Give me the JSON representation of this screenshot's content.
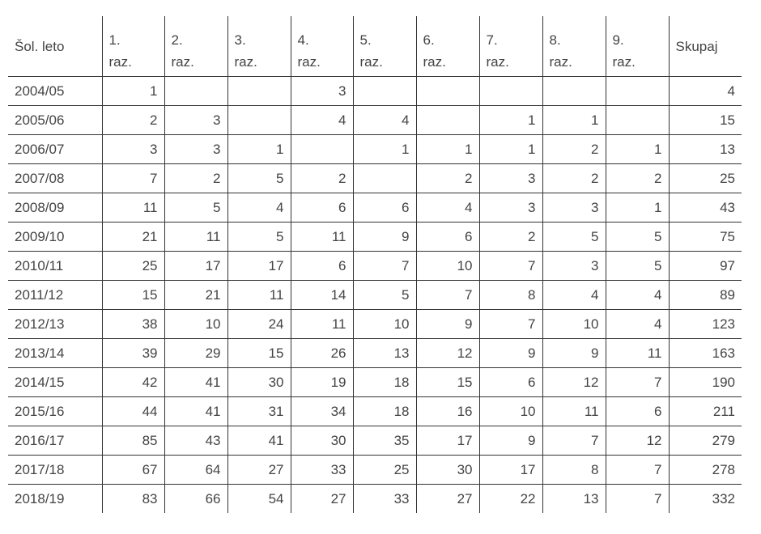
{
  "headers": [
    "Šol. leto",
    "1. raz.",
    "2. raz.",
    "3. raz.",
    "4. raz.",
    "5. raz.",
    "6. raz.",
    "7. raz.",
    "8. raz.",
    "9. raz.",
    "Skupaj"
  ],
  "header_parts": [
    [
      "Šol. leto"
    ],
    [
      "1.",
      "raz."
    ],
    [
      "2.",
      "raz."
    ],
    [
      "3.",
      "raz."
    ],
    [
      "4.",
      "raz."
    ],
    [
      "5.",
      "raz."
    ],
    [
      "6.",
      "raz."
    ],
    [
      "7.",
      "raz."
    ],
    [
      "8.",
      "raz."
    ],
    [
      "9.",
      "raz."
    ],
    [
      "Skupaj"
    ]
  ],
  "rows": [
    [
      "2004/05",
      "1",
      "",
      "",
      "3",
      "",
      "",
      "",
      "",
      "",
      "4"
    ],
    [
      "2005/06",
      "2",
      "3",
      "",
      "4",
      "4",
      "",
      "1",
      "1",
      "",
      "15"
    ],
    [
      "2006/07",
      "3",
      "3",
      "1",
      "",
      "1",
      "1",
      "1",
      "2",
      "1",
      "13"
    ],
    [
      "2007/08",
      "7",
      "2",
      "5",
      "2",
      "",
      "2",
      "3",
      "2",
      "2",
      "25"
    ],
    [
      "2008/09",
      "11",
      "5",
      "4",
      "6",
      "6",
      "4",
      "3",
      "3",
      "1",
      "43"
    ],
    [
      "2009/10",
      "21",
      "11",
      "5",
      "11",
      "9",
      "6",
      "2",
      "5",
      "5",
      "75"
    ],
    [
      "2010/11",
      "25",
      "17",
      "17",
      "6",
      "7",
      "10",
      "7",
      "3",
      "5",
      "97"
    ],
    [
      "2011/12",
      "15",
      "21",
      "11",
      "14",
      "5",
      "7",
      "8",
      "4",
      "4",
      "89"
    ],
    [
      "2012/13",
      "38",
      "10",
      "24",
      "11",
      "10",
      "9",
      "7",
      "10",
      "4",
      "123"
    ],
    [
      "2013/14",
      "39",
      "29",
      "15",
      "26",
      "13",
      "12",
      "9",
      "9",
      "11",
      "163"
    ],
    [
      "2014/15",
      "42",
      "41",
      "30",
      "19",
      "18",
      "15",
      "6",
      "12",
      "7",
      "190"
    ],
    [
      "2015/16",
      "44",
      "41",
      "31",
      "34",
      "18",
      "16",
      "10",
      "11",
      "6",
      "211"
    ],
    [
      "2016/17",
      "85",
      "43",
      "41",
      "30",
      "35",
      "17",
      "9",
      "7",
      "12",
      "279"
    ],
    [
      "2017/18",
      "67",
      "64",
      "27",
      "33",
      "25",
      "30",
      "17",
      "8",
      "7",
      "278"
    ],
    [
      "2018/19",
      "83",
      "66",
      "54",
      "27",
      "33",
      "27",
      "22",
      "13",
      "7",
      "332"
    ]
  ]
}
